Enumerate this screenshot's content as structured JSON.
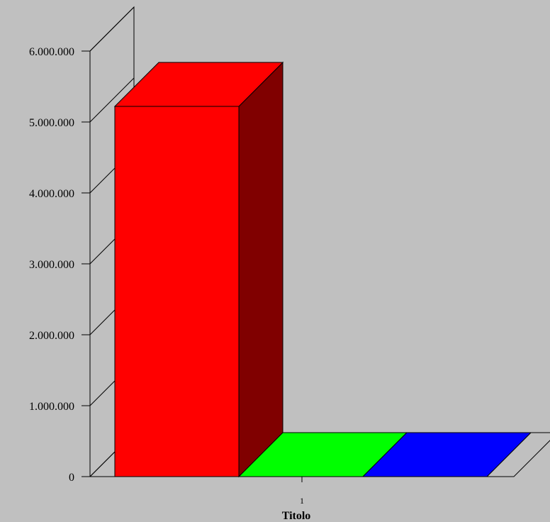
{
  "chart_data": {
    "type": "bar",
    "style": "3d",
    "categories": [
      "1"
    ],
    "series": [
      {
        "values": [
          5220000
        ],
        "color": "#ff0000",
        "side_color": "#800000"
      },
      {
        "values": [
          0
        ],
        "color": "#00ff00",
        "side_color": "#008000"
      },
      {
        "values": [
          0
        ],
        "color": "#0000ff",
        "side_color": "#000080"
      }
    ],
    "title": "",
    "xlabel": "Titolo",
    "ylabel": "",
    "ylim": [
      0,
      6000000
    ],
    "yticks": [
      "0",
      "1.000.000",
      "2.000.000",
      "3.000.000",
      "4.000.000",
      "5.000.000",
      "6.000.000"
    ],
    "grid": false,
    "legend": "none",
    "background": "#c0c0c0"
  }
}
